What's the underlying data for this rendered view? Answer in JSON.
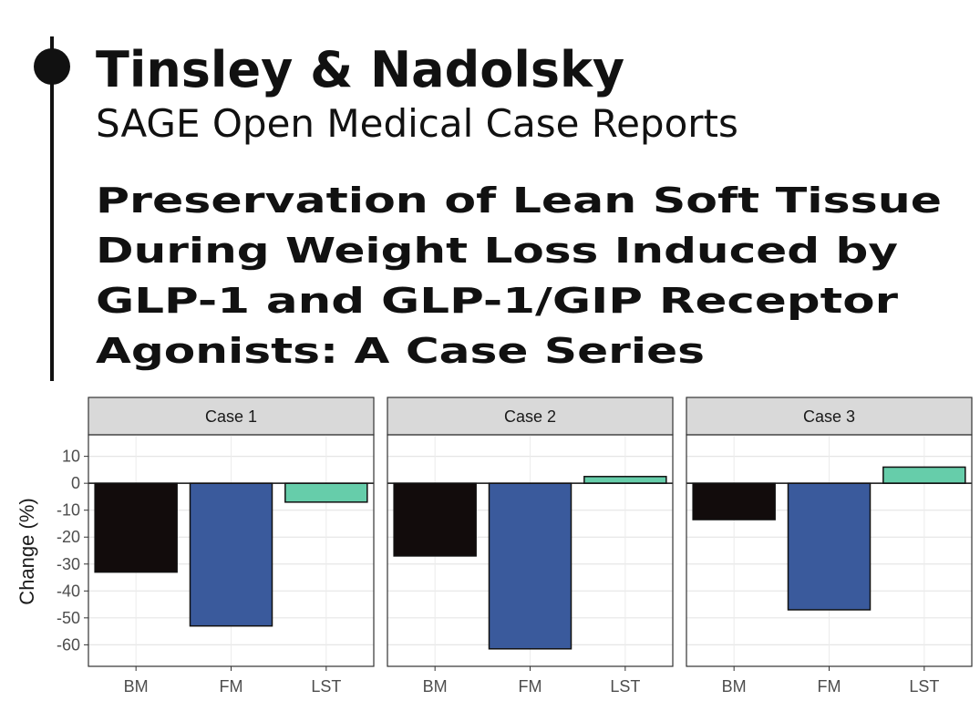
{
  "header": {
    "authors": "Tinsley & Nadolsky",
    "journal": "SAGE Open Medical Case Reports",
    "title_lines": [
      "Preservation of Lean Soft Tissue",
      "During Weight Loss Induced by",
      "GLP-1 and GLP-1/GIP Receptor",
      "Agonists: A Case Series"
    ]
  },
  "chart_data": [
    {
      "type": "bar",
      "title": "Case 1",
      "ylabel": "Change (%)",
      "categories": [
        "BM",
        "FM",
        "LST"
      ],
      "values": [
        -33,
        -53,
        -7
      ],
      "colors": [
        "#120c0c",
        "#3a5a9c",
        "#66cdaa"
      ],
      "ylim": [
        -68,
        18
      ],
      "yticks": [
        10,
        0,
        -10,
        -20,
        -30,
        -40,
        -50,
        -60
      ],
      "grid": true
    },
    {
      "type": "bar",
      "title": "Case 2",
      "categories": [
        "BM",
        "FM",
        "LST"
      ],
      "values": [
        -27,
        -61.5,
        2.5
      ],
      "colors": [
        "#120c0c",
        "#3a5a9c",
        "#66cdaa"
      ],
      "ylim": [
        -68,
        18
      ],
      "grid": true
    },
    {
      "type": "bar",
      "title": "Case 3",
      "categories": [
        "BM",
        "FM",
        "LST"
      ],
      "values": [
        -13.5,
        -47,
        6
      ],
      "colors": [
        "#120c0c",
        "#3a5a9c",
        "#66cdaa"
      ],
      "ylim": [
        -68,
        18
      ],
      "grid": true
    }
  ]
}
